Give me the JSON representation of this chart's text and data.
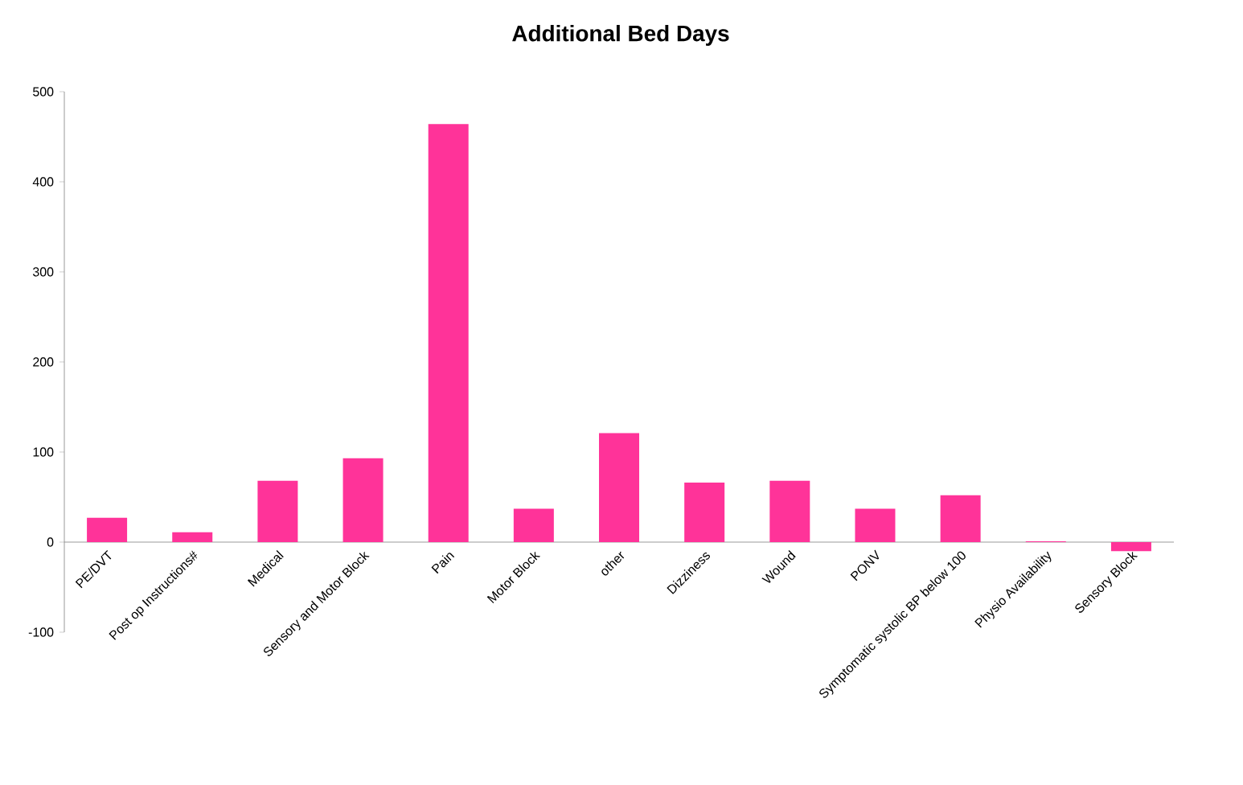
{
  "chart_data": {
    "type": "bar",
    "title": "Additional Bed Days",
    "categories": [
      "PE/DVT",
      "Post op Instructions#",
      "Medical",
      "Sensory and Motor Block",
      "Pain",
      "Motor Block",
      "other",
      "Dizziness",
      "Wound",
      "PONV",
      "Symptomatic systolic BP below 100",
      "Physio Availability",
      "Sensory Block"
    ],
    "values": [
      27,
      11,
      68,
      93,
      464,
      37,
      121,
      66,
      68,
      37,
      52,
      1,
      -10
    ],
    "color": "#ff3399",
    "ylim": [
      -100,
      500
    ],
    "yticks": [
      -100,
      0,
      100,
      200,
      300,
      400,
      500
    ]
  }
}
